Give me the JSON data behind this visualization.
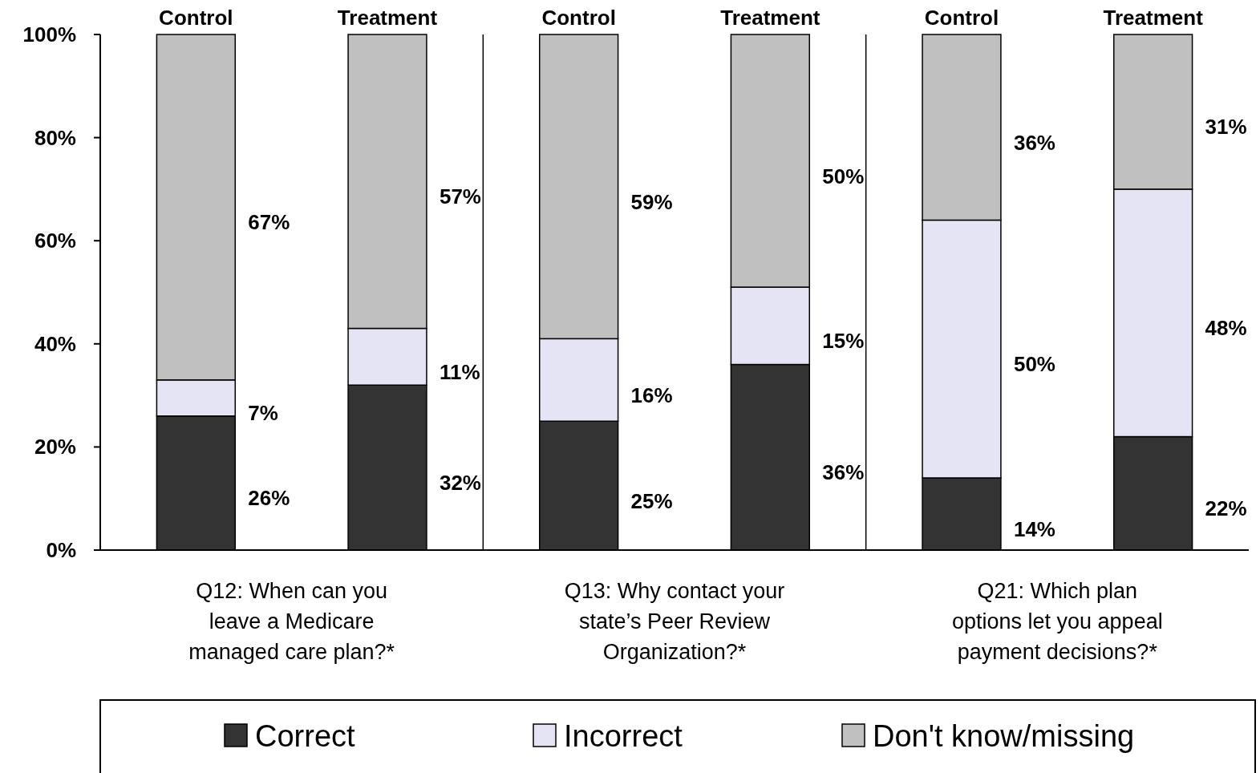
{
  "chart_data": {
    "type": "bar",
    "stacked": true,
    "categories": [
      "Control",
      "Treatment",
      "Control",
      "Treatment",
      "Control",
      "Treatment"
    ],
    "series": [
      {
        "name": "Correct",
        "color": "#333333",
        "values": [
          26,
          32,
          25,
          36,
          14,
          22
        ]
      },
      {
        "name": "Incorrect",
        "color": "#e4e4f4",
        "values": [
          7,
          11,
          16,
          15,
          50,
          48
        ]
      },
      {
        "name": "Don't know/missing",
        "color": "#c0c0c0",
        "values": [
          67,
          57,
          59,
          49,
          36,
          30
        ]
      }
    ],
    "ylim": [
      0,
      100
    ],
    "yticks": [
      {
        "value": 0,
        "label": "0%"
      },
      {
        "value": 20,
        "label": "20%"
      },
      {
        "value": 40,
        "label": "40%"
      },
      {
        "value": 60,
        "label": "60%"
      },
      {
        "value": 80,
        "label": "80%"
      },
      {
        "value": 100,
        "label": "100%"
      }
    ],
    "value_labels": [
      [
        "26%",
        "32%",
        "25%",
        "36%",
        "14%",
        "22%"
      ],
      [
        "7%",
        "11%",
        "16%",
        "15%",
        "50%",
        "48%"
      ],
      [
        "67%",
        "57%",
        "59%",
        "50%",
        "36%",
        "31%"
      ]
    ],
    "annotations": [
      "Q12: When can you leave a Medicare managed care plan?*",
      "Q13: Why contact your state’s Peer Review Organization?*",
      "Q21: Which plan options let you appeal payment decisions?*"
    ],
    "legend": "bottom",
    "grid": false
  }
}
